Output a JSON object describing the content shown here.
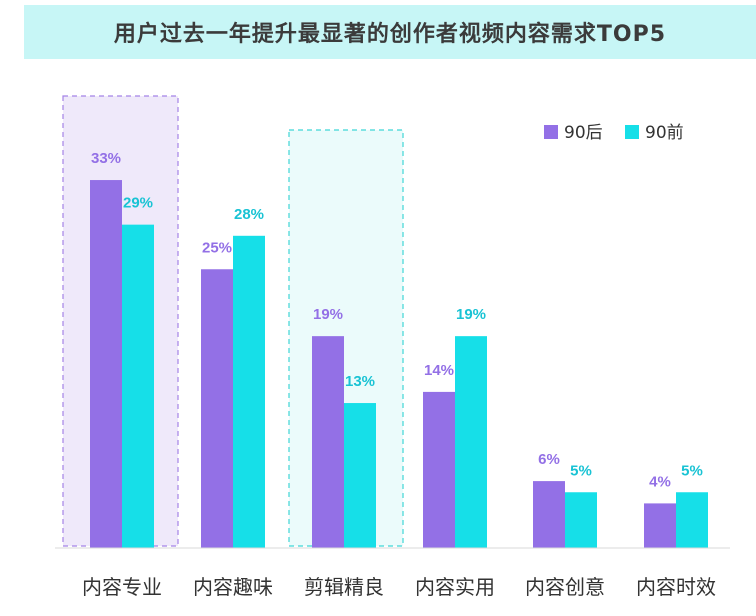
{
  "colors": {
    "series_90hou": "#9370e6",
    "series_90qian": "#16dfe8",
    "title_band": "#c7f6f6",
    "highlight_1": "#a583e6",
    "highlight_2": "#3fd6d6"
  },
  "chart_data": {
    "type": "bar",
    "title": "用户过去一年提升最显著的创作者视频内容需求TOP5",
    "xlabel": "",
    "ylabel": "",
    "ylim": [
      0,
      35
    ],
    "grid": false,
    "legend_position": "top-right",
    "categories": [
      "内容专业",
      "内容趣味",
      "剪辑精良",
      "内容实用",
      "内容创意",
      "内容时效"
    ],
    "series": [
      {
        "name": "90后",
        "values": [
          33,
          25,
          19,
          14,
          6,
          4
        ],
        "labels": [
          "33%",
          "25%",
          "19%",
          "14%",
          "6%",
          "4%"
        ]
      },
      {
        "name": "90前",
        "values": [
          29,
          28,
          13,
          19,
          5,
          5
        ],
        "labels": [
          "29%",
          "28%",
          "13%",
          "19%",
          "5%",
          "5%"
        ]
      }
    ],
    "highlighted_categories": [
      "内容专业",
      "剪辑精良"
    ]
  }
}
